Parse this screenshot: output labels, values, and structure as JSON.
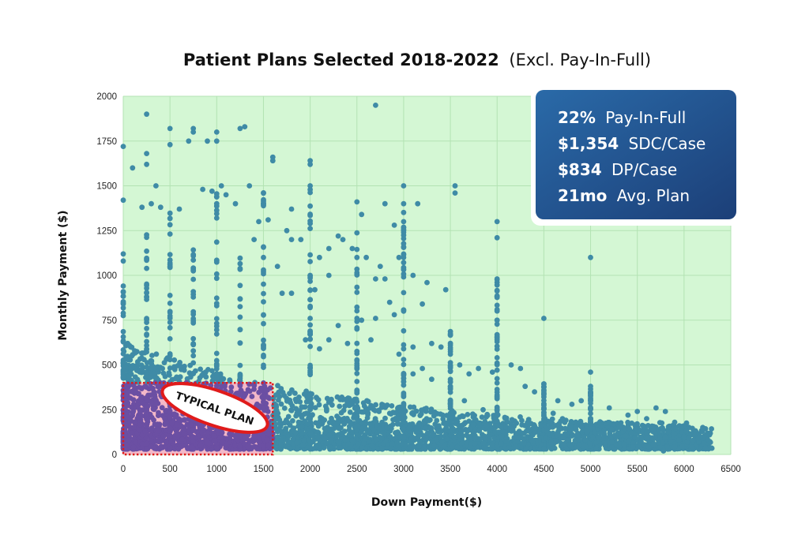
{
  "chart_data": {
    "type": "scatter",
    "title": {
      "bold": "Patient Plans Selected 2018-2022",
      "regular": "(Excl. Pay-In-Full)"
    },
    "xlabel": "Down Payment($)",
    "ylabel": "Monthly Payment ($)",
    "xlim": [
      0,
      6500
    ],
    "ylim": [
      0,
      2000
    ],
    "xticks": [
      "0",
      "500",
      "1000",
      "1500",
      "2000",
      "2500",
      "3000",
      "3500",
      "4000",
      "4500",
      "5000",
      "5500",
      "6000",
      "6500"
    ],
    "yticks": [
      "0",
      "250",
      "500",
      "750",
      "1000",
      "1250",
      "1500",
      "1750",
      "2000"
    ],
    "grid": true,
    "background_color": "#d4f7d4",
    "point_color": "#3f8ba6",
    "highlight_region": {
      "label": "TYPICAL PLAN",
      "x_range": [
        0,
        1600
      ],
      "y_range": [
        0,
        400
      ],
      "fill_color": "#6b4fa3",
      "border_color": "#e01b1b"
    },
    "stats": [
      {
        "bold": "22%",
        "text": "Pay-In-Full"
      },
      {
        "bold": "$1,354",
        "text": "SDC/Case"
      },
      {
        "bold": "$834",
        "text": "DP/Case"
      },
      {
        "bold": "21mo",
        "text": "Avg. Plan"
      }
    ],
    "stats_box_color": "#1e4f86",
    "outlier_points": [
      [
        250,
        1900
      ],
      [
        500,
        1820
      ],
      [
        500,
        1730
      ],
      [
        750,
        1820
      ],
      [
        750,
        1800
      ],
      [
        1000,
        1800
      ],
      [
        1000,
        1750
      ],
      [
        1250,
        1820
      ],
      [
        1300,
        1830
      ],
      [
        0,
        1720
      ],
      [
        700,
        1750
      ],
      [
        900,
        1750
      ],
      [
        2700,
        1950
      ],
      [
        2000,
        1640
      ],
      [
        2000,
        1620
      ],
      [
        1600,
        1660
      ],
      [
        1600,
        1640
      ],
      [
        100,
        1600
      ],
      [
        250,
        1680
      ],
      [
        250,
        1620
      ],
      [
        0,
        1420
      ],
      [
        200,
        1380
      ],
      [
        300,
        1400
      ],
      [
        400,
        1380
      ],
      [
        350,
        1500
      ],
      [
        600,
        1370
      ],
      [
        850,
        1480
      ],
      [
        950,
        1470
      ],
      [
        1050,
        1500
      ],
      [
        1100,
        1450
      ],
      [
        1200,
        1400
      ],
      [
        1350,
        1500
      ],
      [
        2000,
        1500
      ],
      [
        1800,
        1370
      ],
      [
        2500,
        1410
      ],
      [
        2550,
        1340
      ],
      [
        2800,
        1400
      ],
      [
        3000,
        1500
      ],
      [
        3000,
        1400
      ],
      [
        3150,
        1400
      ],
      [
        3550,
        1500
      ],
      [
        3550,
        1460
      ],
      [
        4000,
        1300
      ],
      [
        4000,
        1210
      ],
      [
        4000,
        980
      ],
      [
        4000,
        750
      ],
      [
        5000,
        1100
      ],
      [
        4500,
        760
      ],
      [
        1500,
        1400
      ],
      [
        1450,
        1300
      ],
      [
        1750,
        1250
      ],
      [
        1900,
        1200
      ],
      [
        1550,
        1310
      ],
      [
        2100,
        1100
      ],
      [
        2200,
        1150
      ],
      [
        2300,
        1220
      ],
      [
        2350,
        1200
      ],
      [
        2450,
        1150
      ],
      [
        2600,
        1100
      ],
      [
        2750,
        1050
      ],
      [
        2900,
        1280
      ],
      [
        2950,
        1100
      ],
      [
        3000,
        1100
      ],
      [
        2700,
        980
      ],
      [
        2800,
        980
      ],
      [
        3100,
        1000
      ],
      [
        2850,
        850
      ],
      [
        3250,
        960
      ],
      [
        3200,
        840
      ],
      [
        3450,
        920
      ],
      [
        2000,
        1000
      ],
      [
        1800,
        1200
      ],
      [
        1650,
        1050
      ],
      [
        1800,
        900
      ],
      [
        1700,
        900
      ],
      [
        2200,
        1000
      ],
      [
        1500,
        1100
      ],
      [
        2050,
        920
      ],
      [
        1400,
        1200
      ],
      [
        0,
        1120
      ],
      [
        0,
        1080
      ],
      [
        2550,
        750
      ],
      [
        2300,
        720
      ],
      [
        2700,
        760
      ],
      [
        2900,
        780
      ],
      [
        3000,
        800
      ],
      [
        2500,
        700
      ],
      [
        2000,
        760
      ],
      [
        2200,
        640
      ],
      [
        3300,
        620
      ],
      [
        3400,
        600
      ],
      [
        3100,
        600
      ],
      [
        3500,
        560
      ],
      [
        3600,
        500
      ],
      [
        3700,
        450
      ],
      [
        3800,
        480
      ],
      [
        3950,
        460
      ],
      [
        4150,
        500
      ],
      [
        4250,
        480
      ],
      [
        4300,
        380
      ],
      [
        4400,
        350
      ],
      [
        4650,
        300
      ],
      [
        4800,
        280
      ],
      [
        4900,
        300
      ],
      [
        5000,
        460
      ],
      [
        5000,
        380
      ],
      [
        5000,
        340
      ],
      [
        5200,
        260
      ],
      [
        5400,
        220
      ],
      [
        5500,
        240
      ],
      [
        5600,
        200
      ],
      [
        5700,
        260
      ],
      [
        5800,
        240
      ],
      [
        5900,
        180
      ],
      [
        5950,
        160
      ],
      [
        6000,
        100
      ],
      [
        6050,
        90
      ],
      [
        6100,
        80
      ],
      [
        6150,
        90
      ],
      [
        6250,
        85
      ],
      [
        5780,
        20
      ],
      [
        4850,
        160
      ],
      [
        4700,
        200
      ],
      [
        4600,
        230
      ],
      [
        3850,
        250
      ],
      [
        3650,
        300
      ],
      [
        3500,
        380
      ],
      [
        3300,
        420
      ],
      [
        3200,
        480
      ],
      [
        3100,
        450
      ],
      [
        2950,
        560
      ],
      [
        2650,
        640
      ],
      [
        2400,
        620
      ],
      [
        2100,
        590
      ],
      [
        1950,
        640
      ]
    ]
  }
}
